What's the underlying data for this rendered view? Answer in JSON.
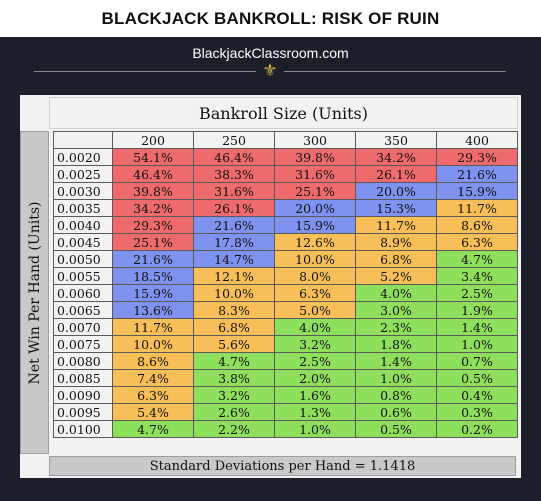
{
  "title": "BLACKJACK BANKROLL: RISK OF RUIN",
  "site": "BlackjackClassroom.com",
  "table": {
    "column_header": "Bankroll Size (Units)",
    "row_header": "Net Win Per Hand (Units)",
    "columns": [
      "200",
      "250",
      "300",
      "350",
      "400"
    ],
    "rows": [
      {
        "label": "0.0020",
        "values": [
          "54.1%",
          "46.4%",
          "39.8%",
          "34.2%",
          "29.3%"
        ],
        "colors": [
          "red",
          "red",
          "red",
          "red",
          "red"
        ]
      },
      {
        "label": "0.0025",
        "values": [
          "46.4%",
          "38.3%",
          "31.6%",
          "26.1%",
          "21.6%"
        ],
        "colors": [
          "red",
          "red",
          "red",
          "red",
          "blue"
        ]
      },
      {
        "label": "0.0030",
        "values": [
          "39.8%",
          "31.6%",
          "25.1%",
          "20.0%",
          "15.9%"
        ],
        "colors": [
          "red",
          "red",
          "red",
          "blue",
          "blue"
        ]
      },
      {
        "label": "0.0035",
        "values": [
          "34.2%",
          "26.1%",
          "20.0%",
          "15.3%",
          "11.7%"
        ],
        "colors": [
          "red",
          "red",
          "blue",
          "blue",
          "orange"
        ]
      },
      {
        "label": "0.0040",
        "values": [
          "29.3%",
          "21.6%",
          "15.9%",
          "11.7%",
          "8.6%"
        ],
        "colors": [
          "red",
          "blue",
          "blue",
          "orange",
          "orange"
        ]
      },
      {
        "label": "0.0045",
        "values": [
          "25.1%",
          "17.8%",
          "12.6%",
          "8.9%",
          "6.3%"
        ],
        "colors": [
          "red",
          "blue",
          "orange",
          "orange",
          "orange"
        ]
      },
      {
        "label": "0.0050",
        "values": [
          "21.6%",
          "14.7%",
          "10.0%",
          "6.8%",
          "4.7%"
        ],
        "colors": [
          "blue",
          "blue",
          "orange",
          "orange",
          "green"
        ]
      },
      {
        "label": "0.0055",
        "values": [
          "18.5%",
          "12.1%",
          "8.0%",
          "5.2%",
          "3.4%"
        ],
        "colors": [
          "blue",
          "orange",
          "orange",
          "orange",
          "green"
        ]
      },
      {
        "label": "0.0060",
        "values": [
          "15.9%",
          "10.0%",
          "6.3%",
          "4.0%",
          "2.5%"
        ],
        "colors": [
          "blue",
          "orange",
          "orange",
          "green",
          "green"
        ]
      },
      {
        "label": "0.0065",
        "values": [
          "13.6%",
          "8.3%",
          "5.0%",
          "3.0%",
          "1.9%"
        ],
        "colors": [
          "blue",
          "orange",
          "orange",
          "green",
          "green"
        ]
      },
      {
        "label": "0.0070",
        "values": [
          "11.7%",
          "6.8%",
          "4.0%",
          "2.3%",
          "1.4%"
        ],
        "colors": [
          "orange",
          "orange",
          "green",
          "green",
          "green"
        ]
      },
      {
        "label": "0.0075",
        "values": [
          "10.0%",
          "5.6%",
          "3.2%",
          "1.8%",
          "1.0%"
        ],
        "colors": [
          "orange",
          "orange",
          "green",
          "green",
          "green"
        ]
      },
      {
        "label": "0.0080",
        "values": [
          "8.6%",
          "4.7%",
          "2.5%",
          "1.4%",
          "0.7%"
        ],
        "colors": [
          "orange",
          "green",
          "green",
          "green",
          "green"
        ]
      },
      {
        "label": "0.0085",
        "values": [
          "7.4%",
          "3.8%",
          "2.0%",
          "1.0%",
          "0.5%"
        ],
        "colors": [
          "orange",
          "green",
          "green",
          "green",
          "green"
        ]
      },
      {
        "label": "0.0090",
        "values": [
          "6.3%",
          "3.2%",
          "1.6%",
          "0.8%",
          "0.4%"
        ],
        "colors": [
          "orange",
          "green",
          "green",
          "green",
          "green"
        ]
      },
      {
        "label": "0.0095",
        "values": [
          "5.4%",
          "2.6%",
          "1.3%",
          "0.6%",
          "0.3%"
        ],
        "colors": [
          "orange",
          "green",
          "green",
          "green",
          "green"
        ]
      },
      {
        "label": "0.0100",
        "values": [
          "4.7%",
          "2.2%",
          "1.0%",
          "0.5%",
          "0.2%"
        ],
        "colors": [
          "green",
          "green",
          "green",
          "green",
          "green"
        ]
      }
    ],
    "footer": "Standard Deviations per Hand = 1.1418"
  },
  "colors": {
    "red": "#ef6a6c",
    "blue": "#7f92f0",
    "orange": "#f8bf58",
    "green": "#8ee05c",
    "background": "#1c1f29",
    "ornament": "#d6b24c"
  }
}
